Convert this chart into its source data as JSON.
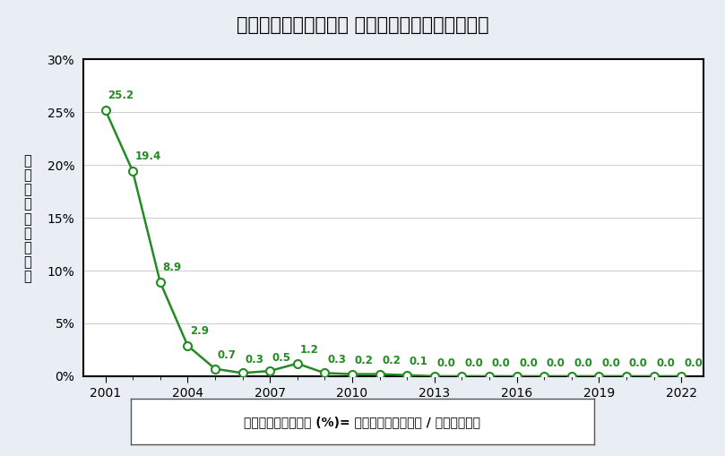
{
  "title": "住友電工ハードメタル ゼロエミッション率の推移",
  "ylabel": "ゼロエミッション率",
  "footnote": "ゼロエミッション率 (%)= 埋立・単純焼却重量 / 廃棄物総重量",
  "years": [
    2001,
    2002,
    2003,
    2004,
    2005,
    2006,
    2007,
    2008,
    2009,
    2010,
    2011,
    2012,
    2013,
    2014,
    2015,
    2016,
    2017,
    2018,
    2019,
    2020,
    2021,
    2022
  ],
  "values": [
    25.2,
    19.4,
    8.9,
    2.9,
    0.7,
    0.3,
    0.5,
    1.2,
    0.3,
    0.2,
    0.2,
    0.1,
    0.0,
    0.0,
    0.0,
    0.0,
    0.0,
    0.0,
    0.0,
    0.0,
    0.0,
    0.0
  ],
  "line_color": "#228B22",
  "marker_facecolor": "#ffffff",
  "marker_edgecolor": "#228B22",
  "label_color": "#228B22",
  "bg_color": "#e8eef4",
  "plot_bg": "#ffffff",
  "grid_color": "#cccccc",
  "ylim": [
    0,
    30
  ],
  "yticks": [
    0,
    5,
    10,
    15,
    20,
    25,
    30
  ],
  "xticks": [
    2001,
    2004,
    2007,
    2010,
    2013,
    2016,
    2019,
    2022
  ],
  "xlim_left": 2000.2,
  "xlim_right": 2022.8,
  "title_fontsize": 15,
  "annot_fontsize": 8.5,
  "tick_fontsize": 10,
  "ylabel_fontsize": 10.5,
  "footnote_fontsize": 10
}
